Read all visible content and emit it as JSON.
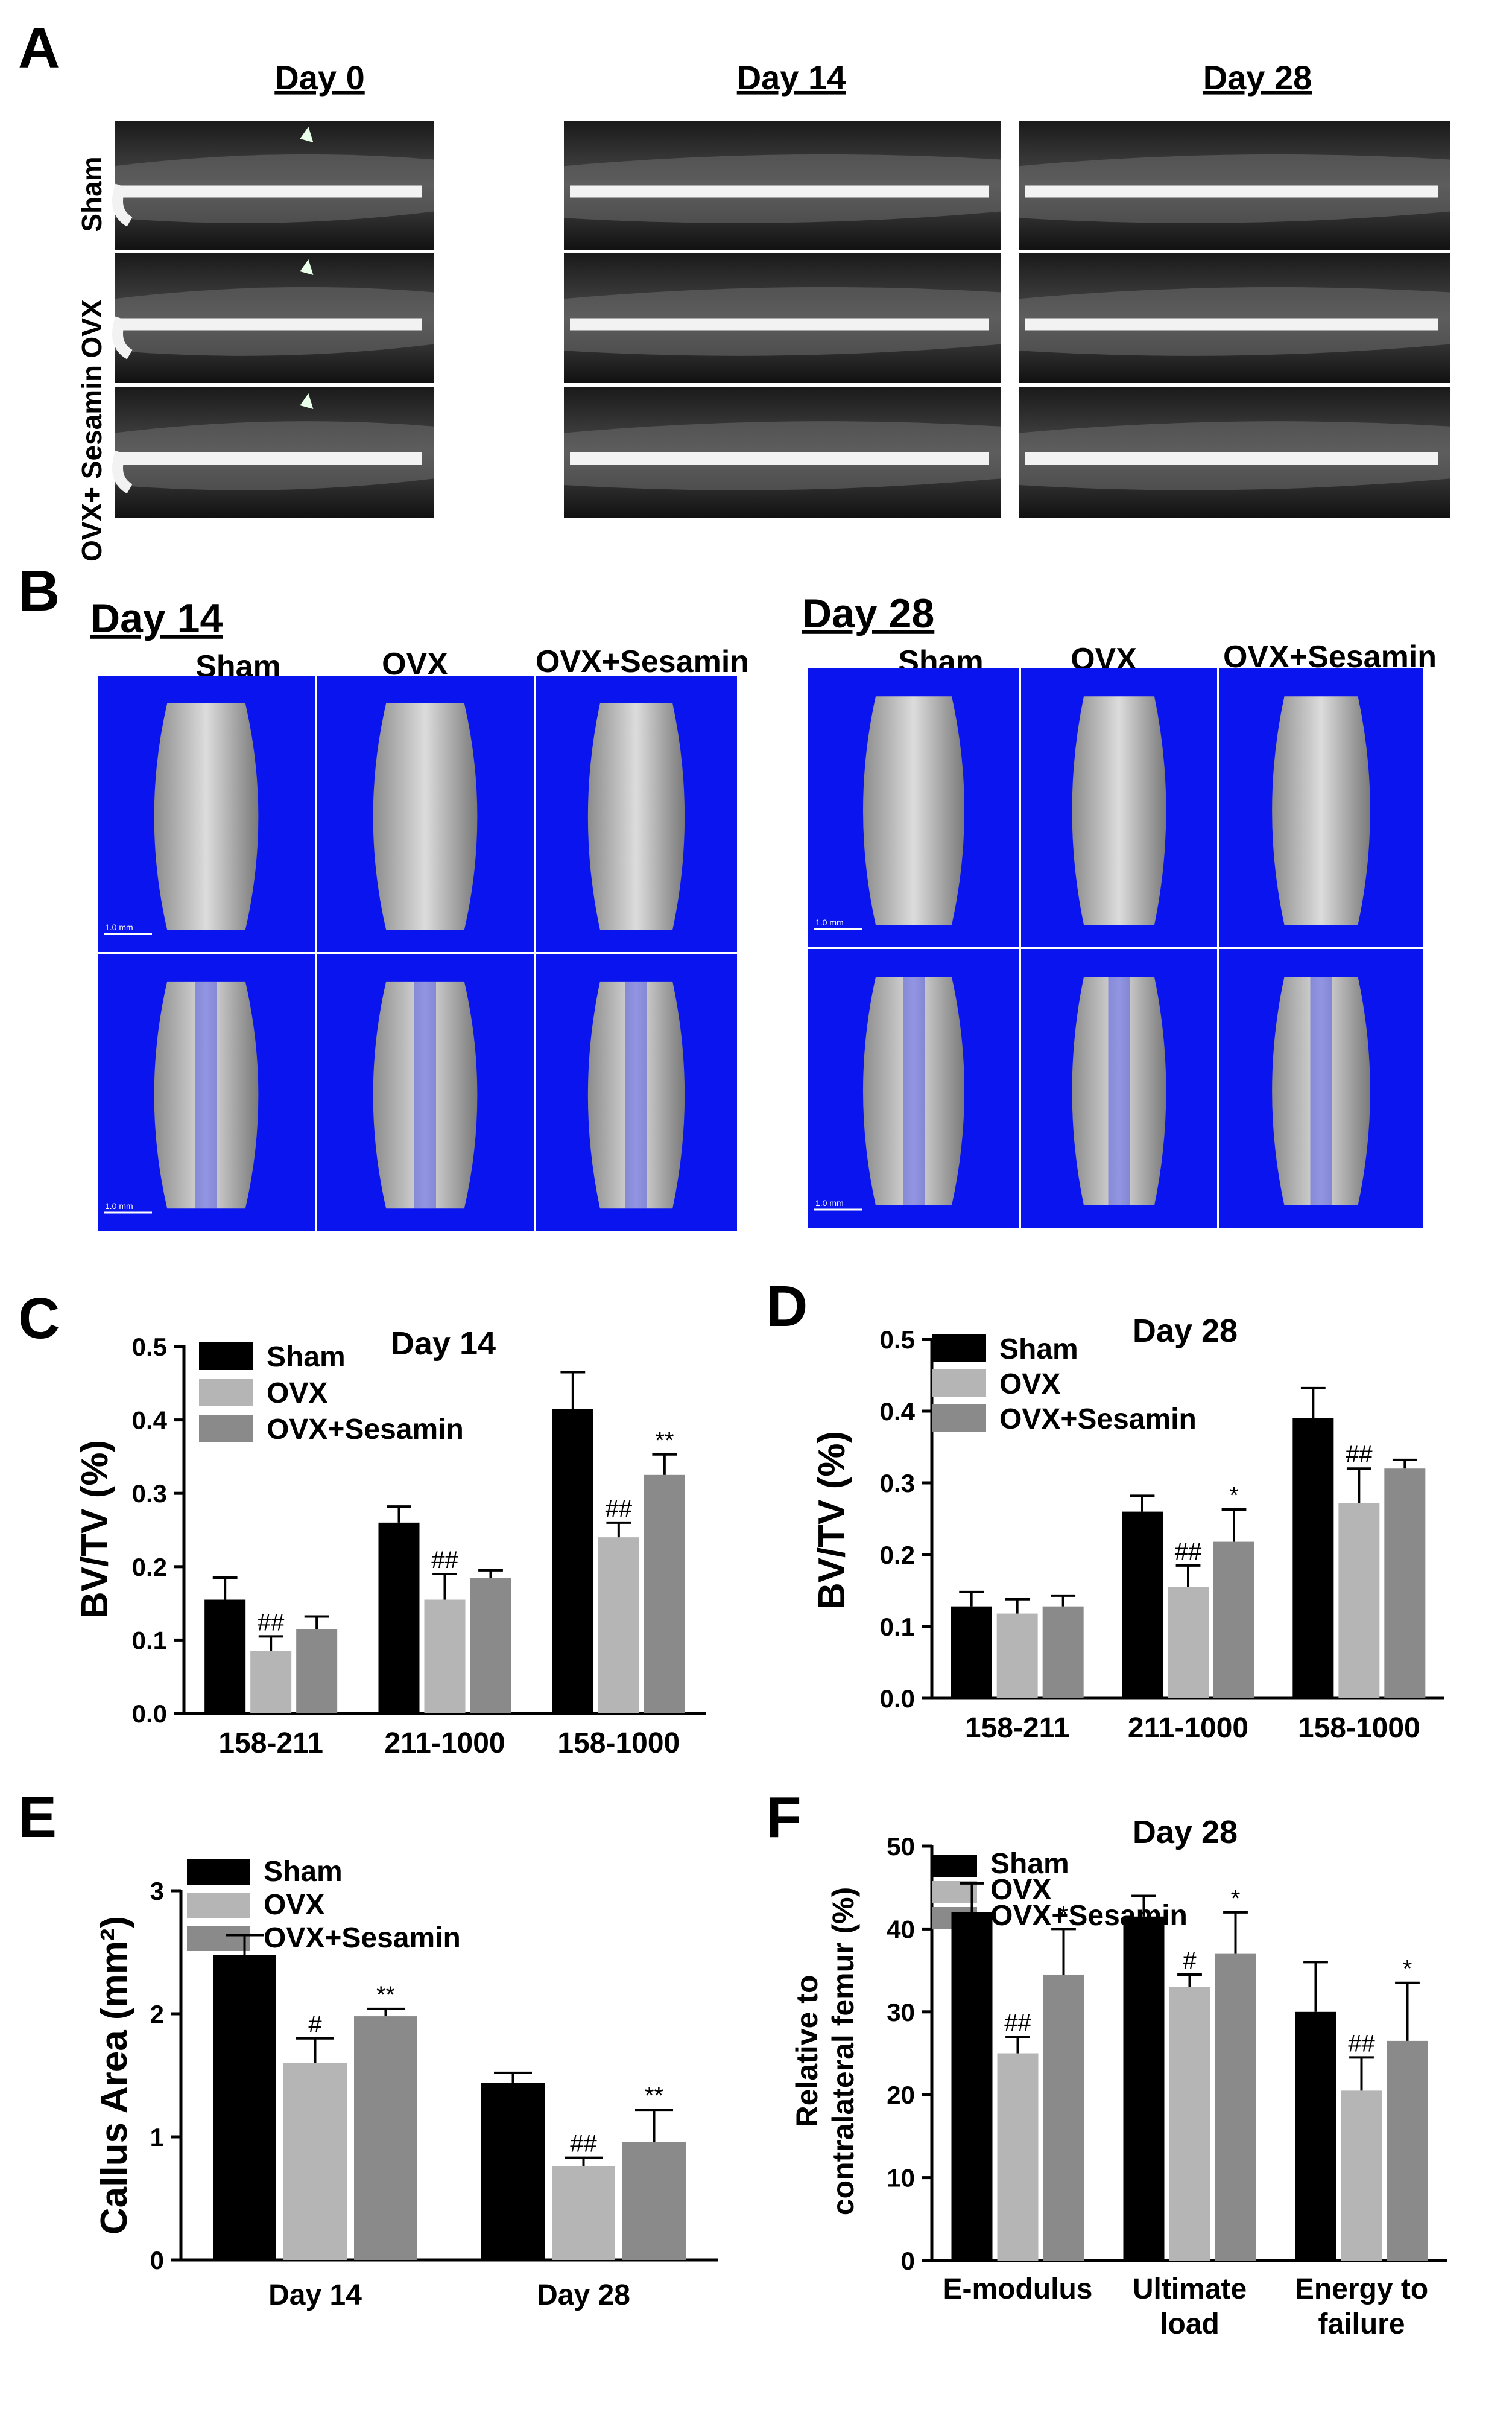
{
  "panels": {
    "A": {
      "letter": "A",
      "columns": [
        "Day 0",
        "Day 14",
        "Day 28"
      ],
      "rows": [
        "Sham",
        "OVX",
        "OVX+ Sesamin"
      ]
    },
    "B": {
      "letter": "B",
      "groups": [
        {
          "day": "Day 14",
          "columns": [
            "Sham",
            "OVX",
            "OVX+Sesamin"
          ]
        },
        {
          "day": "Day 28",
          "columns": [
            "Sham",
            "OVX",
            "OVX+Sesamin"
          ]
        }
      ],
      "scale_bar": "1.0 mm",
      "background_color": "#0a14ee"
    }
  },
  "legend": [
    "Sham",
    "OVX",
    "OVX+Sesamin"
  ],
  "series_colors": [
    "#000000",
    "#b5b5b5",
    "#8a8a8a"
  ],
  "chart_data": [
    {
      "panel": "C",
      "type": "bar",
      "title": "Day 14",
      "ylabel": "BV/TV (%)",
      "ylim": [
        0,
        0.5
      ],
      "yticks": [
        0.0,
        0.1,
        0.2,
        0.3,
        0.4,
        0.5
      ],
      "categories": [
        "158-211",
        "211-1000",
        "158-1000"
      ],
      "series": [
        {
          "name": "Sham",
          "values": [
            0.155,
            0.26,
            0.415
          ],
          "errors": [
            0.03,
            0.022,
            0.05
          ],
          "sig": [
            "",
            "",
            ""
          ]
        },
        {
          "name": "OVX",
          "values": [
            0.085,
            0.155,
            0.24
          ],
          "errors": [
            0.02,
            0.035,
            0.02
          ],
          "sig": [
            "##",
            "##",
            "##"
          ]
        },
        {
          "name": "OVX+Sesamin",
          "values": [
            0.115,
            0.185,
            0.325
          ],
          "errors": [
            0.017,
            0.01,
            0.028
          ],
          "sig": [
            "",
            "",
            "**"
          ]
        }
      ]
    },
    {
      "panel": "D",
      "type": "bar",
      "title": "Day 28",
      "ylabel": "BV/TV (%)",
      "ylim": [
        0,
        0.5
      ],
      "yticks": [
        0.0,
        0.1,
        0.2,
        0.3,
        0.4,
        0.5
      ],
      "categories": [
        "158-211",
        "211-1000",
        "158-1000"
      ],
      "series": [
        {
          "name": "Sham",
          "values": [
            0.128,
            0.26,
            0.39
          ],
          "errors": [
            0.02,
            0.022,
            0.042
          ],
          "sig": [
            "",
            "",
            ""
          ]
        },
        {
          "name": "OVX",
          "values": [
            0.118,
            0.155,
            0.272
          ],
          "errors": [
            0.02,
            0.03,
            0.048
          ],
          "sig": [
            "",
            "##",
            "##"
          ]
        },
        {
          "name": "OVX+Sesamin",
          "values": [
            0.128,
            0.218,
            0.32
          ],
          "errors": [
            0.015,
            0.045,
            0.012
          ],
          "sig": [
            "",
            "*",
            ""
          ]
        }
      ]
    },
    {
      "panel": "E",
      "type": "bar",
      "title": "",
      "ylabel": "Callus Area (mm²)",
      "ylim": [
        0,
        3
      ],
      "yticks": [
        0,
        1,
        2,
        3
      ],
      "categories": [
        "Day 14",
        "Day 28"
      ],
      "series": [
        {
          "name": "Sham",
          "values": [
            2.48,
            1.44
          ],
          "errors": [
            0.16,
            0.08
          ],
          "sig": [
            "",
            ""
          ]
        },
        {
          "name": "OVX",
          "values": [
            1.6,
            0.76
          ],
          "errors": [
            0.2,
            0.07
          ],
          "sig": [
            "#",
            "##"
          ]
        },
        {
          "name": "OVX+Sesamin",
          "values": [
            1.98,
            0.96
          ],
          "errors": [
            0.06,
            0.26
          ],
          "sig": [
            "**",
            "**"
          ]
        }
      ]
    },
    {
      "panel": "F",
      "type": "bar",
      "title": "Day 28",
      "ylabel": "Relative to contralateral femur (%)",
      "ylim": [
        0,
        50
      ],
      "yticks": [
        0,
        10,
        20,
        30,
        40,
        50
      ],
      "categories": [
        "E-modulus",
        "Ultimate load",
        "Energy to failure"
      ],
      "series": [
        {
          "name": "Sham",
          "values": [
            42,
            41.5,
            30
          ],
          "errors": [
            3.5,
            2.5,
            6
          ],
          "sig": [
            "",
            "",
            ""
          ]
        },
        {
          "name": "OVX",
          "values": [
            25,
            33,
            20.5
          ],
          "errors": [
            2,
            1.5,
            4
          ],
          "sig": [
            "##",
            "#",
            "##"
          ]
        },
        {
          "name": "OVX+Sesamin",
          "values": [
            34.5,
            37,
            26.5
          ],
          "errors": [
            5.5,
            5,
            7
          ],
          "sig": [
            "*",
            "*",
            "*"
          ]
        }
      ]
    }
  ]
}
